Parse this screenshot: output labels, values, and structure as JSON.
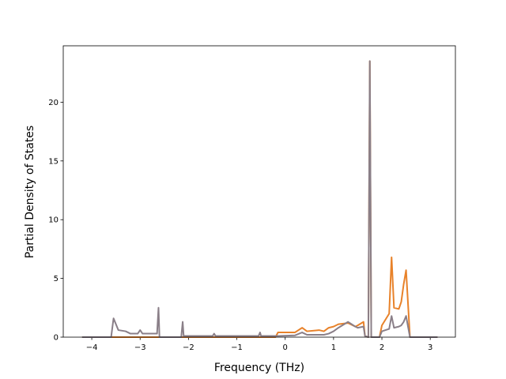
{
  "chart_data": {
    "type": "line",
    "xlabel": "Frequency (THz)",
    "ylabel": "Partial Density of States",
    "x": [
      -4.2,
      -3.6,
      -3.55,
      -3.45,
      -3.3,
      -3.2,
      -3.05,
      -3.0,
      -2.95,
      -2.65,
      -2.62,
      -2.6,
      -2.15,
      -2.12,
      -2.1,
      -1.5,
      -1.47,
      -1.44,
      -0.55,
      -0.52,
      -0.5,
      -0.2,
      -0.15,
      0.2,
      0.35,
      0.45,
      0.7,
      0.8,
      0.9,
      1.0,
      1.1,
      1.3,
      1.45,
      1.5,
      1.62,
      1.65,
      1.72,
      1.75,
      1.78,
      1.95,
      2.0,
      2.15,
      2.2,
      2.25,
      2.35,
      2.4,
      2.45,
      2.5,
      2.58,
      3.15
    ],
    "series": [
      {
        "color": "#e8822a",
        "values": [
          0,
          0,
          0,
          0,
          0,
          0,
          0,
          0,
          0,
          0,
          0,
          0,
          0,
          0,
          0,
          0,
          0,
          0,
          0,
          0,
          0,
          0,
          0.4,
          0.4,
          0.8,
          0.5,
          0.6,
          0.5,
          0.8,
          0.9,
          1.1,
          1.2,
          0.9,
          1.0,
          1.3,
          0.1,
          0,
          23.5,
          0,
          0,
          1.0,
          2.0,
          6.8,
          2.5,
          2.4,
          3.0,
          4.5,
          5.7,
          0,
          0
        ]
      },
      {
        "color": "#8a7f88",
        "values": [
          0,
          0,
          1.6,
          0.6,
          0.5,
          0.3,
          0.3,
          0.6,
          0.3,
          0.3,
          2.5,
          0,
          0,
          1.3,
          0.1,
          0.1,
          0.3,
          0.1,
          0.1,
          0.4,
          0.1,
          0.1,
          0.1,
          0.15,
          0.4,
          0.2,
          0.2,
          0.2,
          0.3,
          0.5,
          0.8,
          1.3,
          0.9,
          0.8,
          0.9,
          0.1,
          0,
          23.5,
          0,
          0,
          0.5,
          0.7,
          1.8,
          0.8,
          0.9,
          1.0,
          1.3,
          1.8,
          0,
          0
        ]
      }
    ],
    "xlim": [
      -4.59,
      3.52
    ],
    "ylim": [
      0,
      24.8
    ],
    "xticks": [
      {
        "value": -4,
        "label": "−4"
      },
      {
        "value": -3,
        "label": "−3"
      },
      {
        "value": -2,
        "label": "−2"
      },
      {
        "value": -1,
        "label": "−1"
      },
      0,
      1,
      2,
      3
    ],
    "yticks": [
      0,
      5,
      10,
      15,
      20
    ]
  }
}
